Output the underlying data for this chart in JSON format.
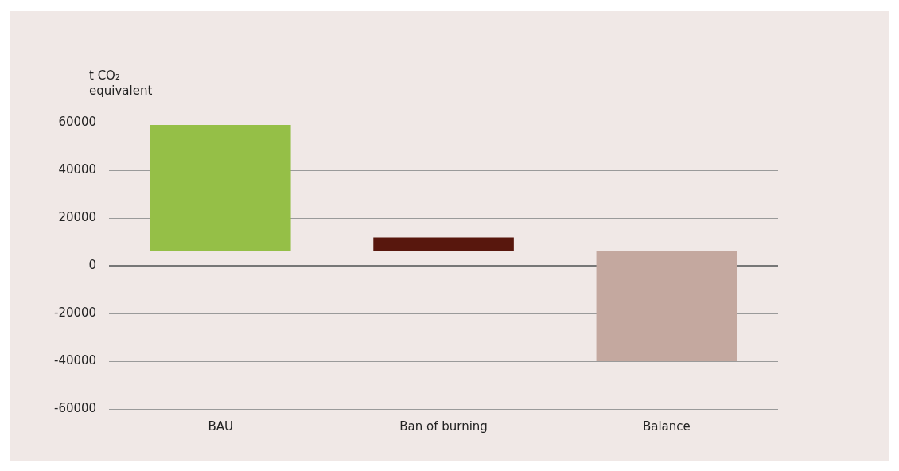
{
  "chart_data": {
    "type": "bar",
    "ylabel": "t CO₂ equivalent",
    "categories": [
      "BAU",
      "Ban of burning",
      "Balance"
    ],
    "base": [
      6000,
      6000,
      -40000
    ],
    "values": [
      53000,
      5800,
      46300
    ],
    "colors": [
      "#95bf47",
      "#58170d",
      "#c4a89f"
    ],
    "ylim": [
      -60000,
      60000
    ],
    "yticks": [
      -60000,
      -40000,
      -20000,
      0,
      20000,
      40000,
      60000
    ],
    "grid": "y",
    "legend": false
  }
}
